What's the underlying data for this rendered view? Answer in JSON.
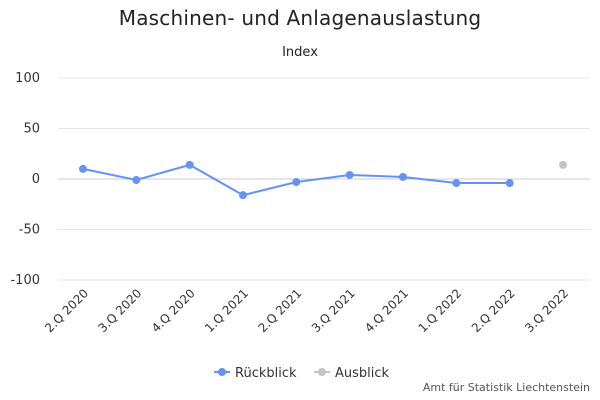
{
  "chart_data": {
    "type": "line",
    "title": "Maschinen- und Anlagenauslastung",
    "subtitle": "Index",
    "categories": [
      "2.Q 2020",
      "3.Q 2020",
      "4.Q 2020",
      "1.Q 2021",
      "2.Q 2021",
      "3.Q 2021",
      "4.Q 2021",
      "1.Q 2022",
      "2.Q 2022",
      "3.Q 2022"
    ],
    "ylim": [
      -100,
      100
    ],
    "yticks": [
      100,
      50,
      0,
      -50,
      -100
    ],
    "grid": true,
    "legend_position": "bottom-center",
    "series": [
      {
        "name": "Rückblick",
        "color": "#6592f5",
        "values": [
          10,
          -1,
          14,
          -16,
          -3,
          4,
          2,
          -4,
          -4,
          null
        ]
      },
      {
        "name": "Ausblick",
        "color": "#c4c4c4",
        "values": [
          null,
          null,
          null,
          null,
          null,
          null,
          null,
          null,
          null,
          14
        ]
      }
    ]
  },
  "credit": "Amt für Statistik Liechtenstein"
}
